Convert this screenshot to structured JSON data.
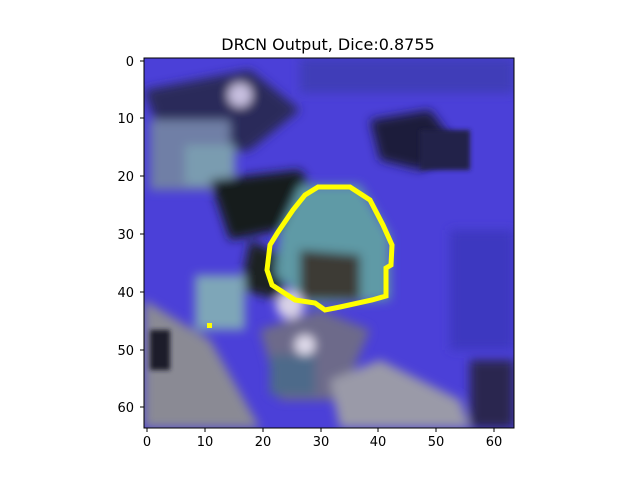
{
  "figure": {
    "title": "DRCN Output, Dice:0.8755",
    "image_shape": [
      64,
      64
    ],
    "xticks": [
      "0",
      "10",
      "20",
      "30",
      "40",
      "50",
      "60"
    ],
    "yticks": [
      "0",
      "10",
      "20",
      "30",
      "40",
      "50",
      "60"
    ],
    "overlay_color": "#ffff00",
    "content_description_colors": {
      "background_blue": "#4a3fd6",
      "roof_teal": "#6aa6b0",
      "shadow_dark": "#141c1c",
      "road_gray": "#8c8c96"
    }
  }
}
